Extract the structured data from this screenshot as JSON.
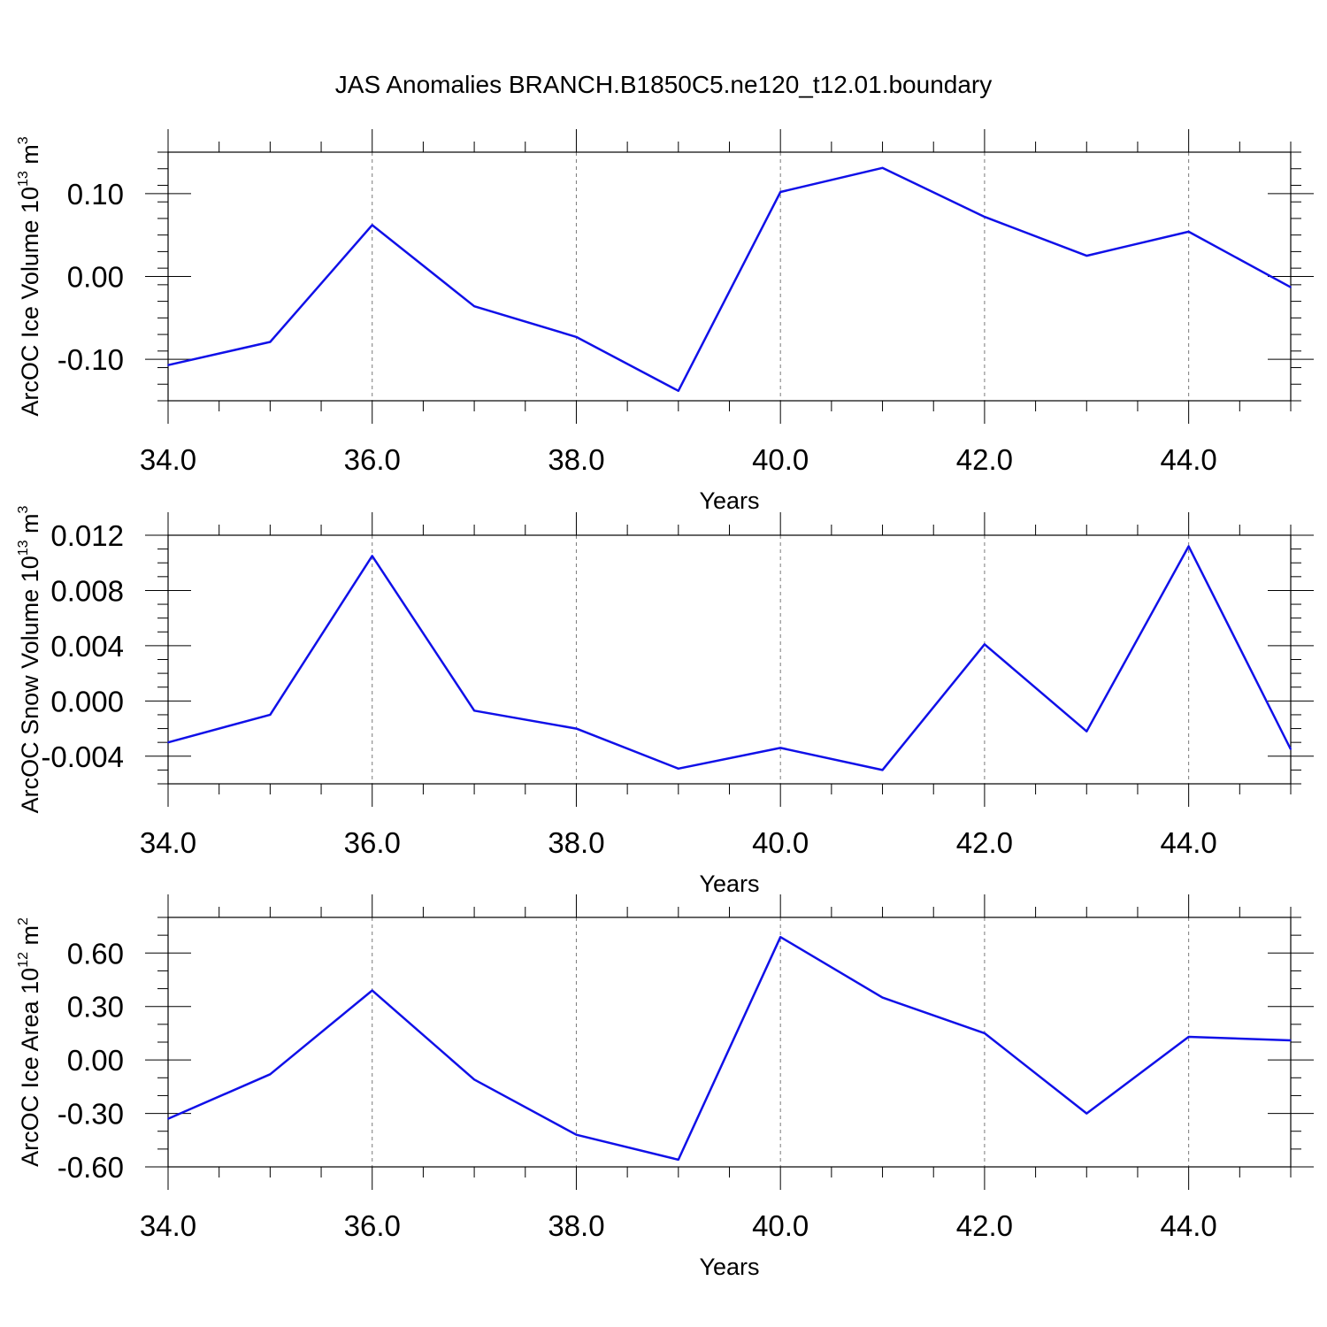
{
  "chart_data": [
    {
      "type": "line",
      "title": "JAS Anomalies BRANCH.B1850C5.ne120_t12.01.boundary",
      "xlabel": "Years",
      "ylabel": {
        "text": "ArcOC Ice Volume 10",
        "exp": "13",
        "unit": " m",
        "unit_exp": "3"
      },
      "x": [
        34,
        35,
        36,
        37,
        38,
        39,
        40,
        41,
        42,
        43,
        44,
        45
      ],
      "series": [
        {
          "values": [
            -0.107,
            -0.079,
            0.062,
            -0.036,
            -0.073,
            -0.138,
            0.102,
            0.131,
            0.072,
            0.025,
            0.054,
            -0.013
          ]
        }
      ],
      "xlim": [
        34,
        45
      ],
      "ylim": [
        -0.15,
        0.15
      ],
      "xticks": [
        34,
        36,
        38,
        40,
        42,
        44
      ],
      "xtick_labels": [
        "34.0",
        "36.0",
        "38.0",
        "40.0",
        "42.0",
        "44.0"
      ],
      "yticks": [
        -0.1,
        0.0,
        0.1
      ],
      "ytick_labels": [
        "-0.10",
        "0.00",
        "0.10"
      ],
      "yminor": 0.02,
      "grid": "x dashed",
      "line_color": "#1010e8"
    },
    {
      "type": "line",
      "xlabel": "Years",
      "ylabel": {
        "text": "ArcOC Snow Volume 10",
        "exp": "13",
        "unit": " m",
        "unit_exp": "3"
      },
      "x": [
        34,
        35,
        36,
        37,
        38,
        39,
        40,
        41,
        42,
        43,
        44,
        45
      ],
      "series": [
        {
          "values": [
            -0.003,
            -0.001,
            0.0105,
            -0.0007,
            -0.002,
            -0.0049,
            -0.0034,
            -0.005,
            0.0041,
            -0.0022,
            0.0112,
            -0.0035
          ]
        }
      ],
      "xlim": [
        34,
        45
      ],
      "ylim": [
        -0.006,
        0.012
      ],
      "xticks": [
        34,
        36,
        38,
        40,
        42,
        44
      ],
      "xtick_labels": [
        "34.0",
        "36.0",
        "38.0",
        "40.0",
        "42.0",
        "44.0"
      ],
      "yticks": [
        -0.004,
        0.0,
        0.004,
        0.008,
        0.012
      ],
      "ytick_labels": [
        "-0.004",
        "0.000",
        "0.004",
        "0.008",
        "0.012"
      ],
      "yminor": 0.001,
      "grid": "x dashed",
      "line_color": "#1010e8"
    },
    {
      "type": "line",
      "xlabel": "Years",
      "ylabel": {
        "text": "ArcOC Ice Area 10",
        "exp": "12",
        "unit": " m",
        "unit_exp": "2"
      },
      "x": [
        34,
        35,
        36,
        37,
        38,
        39,
        40,
        41,
        42,
        43,
        44,
        45
      ],
      "series": [
        {
          "values": [
            -0.33,
            -0.08,
            0.39,
            -0.11,
            -0.42,
            -0.56,
            0.69,
            0.35,
            0.15,
            -0.3,
            0.13,
            0.11
          ]
        }
      ],
      "xlim": [
        34,
        45
      ],
      "ylim": [
        -0.6,
        0.8
      ],
      "xticks": [
        34,
        36,
        38,
        40,
        42,
        44
      ],
      "xtick_labels": [
        "34.0",
        "36.0",
        "38.0",
        "40.0",
        "42.0",
        "44.0"
      ],
      "yticks": [
        -0.6,
        -0.3,
        0.0,
        0.3,
        0.6
      ],
      "ytick_labels": [
        "-0.60",
        "-0.30",
        "0.00",
        "0.30",
        "0.60"
      ],
      "yminor": 0.1,
      "grid": "x dashed",
      "line_color": "#1010e8"
    }
  ]
}
